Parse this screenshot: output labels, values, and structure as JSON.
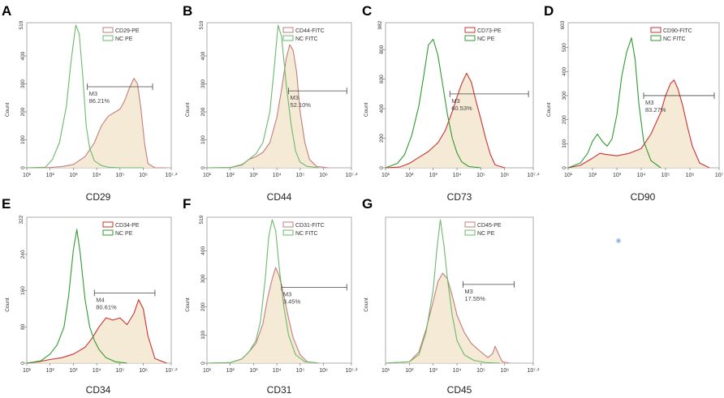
{
  "chart_data": [
    {
      "panel": "A",
      "type": "line",
      "xlabel": "CD29",
      "ylabel": "Count",
      "ylim": [
        0,
        519
      ],
      "ymax_label": "519",
      "yticks": [
        0,
        100,
        200,
        300,
        400
      ],
      "xlim": [
        1,
        7.2
      ],
      "xtick_labels": [
        "10¹",
        "10²",
        "10³",
        "10⁴",
        "10⁵",
        "10⁶",
        "10⁷·²"
      ],
      "legend": [
        "CD29-PE",
        "NC PE"
      ],
      "gate_name": "M3",
      "gate_pct": "86.21%",
      "gate_range": [
        3.6,
        6.4
      ],
      "gate_y": 290,
      "series": [
        {
          "name": "CD29-PE",
          "color": "#c47c7c",
          "fill": true,
          "x": [
            1,
            2,
            2.5,
            3,
            3.5,
            3.9,
            4.2,
            4.5,
            4.8,
            5,
            5.2,
            5.4,
            5.6,
            5.75,
            5.9,
            6.05,
            6.2,
            6.5,
            7
          ],
          "y": [
            0,
            1,
            4,
            12,
            40,
            90,
            150,
            185,
            200,
            210,
            240,
            285,
            320,
            300,
            210,
            90,
            15,
            0,
            0
          ]
        },
        {
          "name": "NC PE",
          "color": "#6cb86c",
          "fill": false,
          "x": [
            1,
            1.8,
            2.1,
            2.4,
            2.7,
            2.9,
            3.1,
            3.25,
            3.4,
            3.55,
            3.7,
            3.9,
            4.2,
            4.5,
            5,
            6
          ],
          "y": [
            0,
            2,
            30,
            90,
            220,
            380,
            510,
            480,
            330,
            150,
            70,
            25,
            8,
            2,
            0,
            0
          ]
        }
      ]
    },
    {
      "panel": "B",
      "type": "line",
      "xlabel": "CD44",
      "ylabel": "Count",
      "ylim": [
        0,
        519
      ],
      "ymax_label": "519",
      "yticks": [
        0,
        100,
        200,
        300,
        400
      ],
      "xlim": [
        1,
        7.2
      ],
      "xtick_labels": [
        "10¹",
        "10²",
        "10³",
        "10⁴",
        "10⁵",
        "10⁶",
        "10⁷·²"
      ],
      "legend": [
        "CD44-FITC",
        "NC FITC"
      ],
      "gate_name": "M3",
      "gate_pct": "52.10%",
      "gate_range": [
        4.5,
        7.0
      ],
      "gate_y": 275,
      "series": [
        {
          "name": "CD44-FITC",
          "color": "#c47c7c",
          "fill": true,
          "x": [
            1,
            2,
            2.5,
            2.8,
            3.1,
            3.4,
            3.7,
            4.0,
            4.2,
            4.4,
            4.55,
            4.7,
            4.85,
            5.0,
            5.2,
            5.4,
            5.7,
            6.2
          ],
          "y": [
            0,
            1,
            10,
            30,
            40,
            55,
            90,
            180,
            280,
            390,
            440,
            420,
            340,
            200,
            90,
            30,
            5,
            0
          ]
        },
        {
          "name": "NC FITC",
          "color": "#6cb86c",
          "fill": false,
          "x": [
            1,
            2,
            2.5,
            2.8,
            3.1,
            3.4,
            3.7,
            3.9,
            4.05,
            4.2,
            4.4,
            4.6,
            4.8,
            5.0,
            5.3,
            5.8
          ],
          "y": [
            0,
            1,
            12,
            30,
            50,
            90,
            200,
            370,
            510,
            470,
            300,
            160,
            60,
            20,
            5,
            0
          ]
        }
      ]
    },
    {
      "panel": "C",
      "type": "line",
      "xlabel": "CD73",
      "ylabel": "Count",
      "ylim": [
        0,
        982
      ],
      "ymax_label": "982",
      "yticks": [
        0,
        200,
        400,
        600,
        800
      ],
      "xlim": [
        1,
        7.2
      ],
      "xtick_labels": [
        "10¹",
        "10²",
        "10³",
        "10⁴",
        "10⁵",
        "10⁶",
        "10⁷·²"
      ],
      "legend": [
        "CD73-PE",
        "NC PE"
      ],
      "gate_name": "M3",
      "gate_pct": "60.53%",
      "gate_range": [
        3.7,
        7.0
      ],
      "gate_y": 500,
      "series": [
        {
          "name": "CD73-PE",
          "color": "#cc3030",
          "fill": true,
          "x": [
            1,
            1.6,
            2,
            2.4,
            2.8,
            3.2,
            3.5,
            3.8,
            4.0,
            4.2,
            4.4,
            4.6,
            4.8,
            5.0,
            5.2,
            5.4,
            5.6,
            6.0
          ],
          "y": [
            0,
            5,
            30,
            70,
            110,
            170,
            250,
            380,
            480,
            570,
            640,
            580,
            450,
            330,
            200,
            90,
            20,
            0
          ]
        },
        {
          "name": "NC PE",
          "color": "#2f9a2f",
          "fill": false,
          "x": [
            1,
            1.5,
            1.8,
            2.1,
            2.4,
            2.6,
            2.8,
            3.0,
            3.2,
            3.4,
            3.6,
            3.8,
            4.0,
            4.2,
            4.5,
            5.0
          ],
          "y": [
            0,
            30,
            90,
            220,
            420,
            620,
            830,
            870,
            760,
            560,
            360,
            200,
            100,
            40,
            8,
            0
          ]
        }
      ]
    },
    {
      "panel": "D",
      "type": "line",
      "xlabel": "CD90",
      "ylabel": "Count",
      "ylim": [
        0,
        603
      ],
      "ymax_label": "603",
      "yticks": [
        0,
        100,
        200,
        300,
        400,
        500
      ],
      "xlim": [
        1,
        7.2
      ],
      "xtick_labels": [
        "10¹",
        "10²",
        "10³",
        "10⁴",
        "10⁵",
        "10⁶",
        "10⁷"
      ],
      "legend": [
        "CD90-FITC",
        "NC FITC"
      ],
      "gate_name": "M3",
      "gate_pct": "83.27%",
      "gate_range": [
        4.1,
        7.0
      ],
      "gate_y": 300,
      "series": [
        {
          "name": "CD90-FITC",
          "color": "#cc3030",
          "fill": true,
          "x": [
            1,
            1.5,
            2,
            2.3,
            2.6,
            3.0,
            3.5,
            4.0,
            4.4,
            4.8,
            5.0,
            5.2,
            5.35,
            5.5,
            5.7,
            5.9,
            6.1,
            6.4,
            6.8
          ],
          "y": [
            0,
            10,
            40,
            60,
            55,
            50,
            60,
            80,
            140,
            230,
            300,
            350,
            365,
            330,
            260,
            170,
            90,
            20,
            0
          ]
        },
        {
          "name": "NC FITC",
          "color": "#2f9a2f",
          "fill": false,
          "x": [
            1,
            1.5,
            1.8,
            2.0,
            2.2,
            2.4,
            2.6,
            2.8,
            3.0,
            3.2,
            3.4,
            3.6,
            3.75,
            3.9,
            4.1,
            4.4,
            4.8
          ],
          "y": [
            0,
            20,
            60,
            110,
            140,
            110,
            90,
            120,
            220,
            380,
            480,
            540,
            450,
            270,
            110,
            30,
            0
          ]
        }
      ]
    },
    {
      "panel": "E",
      "type": "line",
      "xlabel": "CD34",
      "ylabel": "Count",
      "ylim": [
        0,
        322
      ],
      "ymax_label": "322",
      "yticks": [
        0,
        80,
        160,
        240
      ],
      "xlim": [
        1,
        7.2
      ],
      "xtick_labels": [
        "10¹",
        "10²",
        "10³",
        "10⁴",
        "10⁵",
        "10⁶",
        "10⁷·²"
      ],
      "legend": [
        "CD34-PE",
        "NC PE"
      ],
      "gate_name": "M4",
      "gate_pct": "80.61%",
      "gate_range": [
        3.9,
        6.5
      ],
      "gate_y": 155,
      "series": [
        {
          "name": "CD34-PE",
          "color": "#cc3030",
          "fill": true,
          "x": [
            1,
            1.5,
            2,
            2.5,
            3,
            3.5,
            3.8,
            4.1,
            4.4,
            4.7,
            5.0,
            5.3,
            5.6,
            5.8,
            6.0,
            6.2,
            6.5,
            7
          ],
          "y": [
            0,
            3,
            8,
            12,
            20,
            35,
            55,
            80,
            100,
            95,
            100,
            85,
            110,
            140,
            120,
            60,
            10,
            0
          ]
        },
        {
          "name": "NC PE",
          "color": "#2f9a2f",
          "fill": false,
          "x": [
            1,
            1.6,
            2.0,
            2.3,
            2.6,
            2.8,
            3.0,
            3.15,
            3.3,
            3.5,
            3.7,
            3.9,
            4.1,
            4.4,
            4.8,
            5.3
          ],
          "y": [
            0,
            5,
            20,
            40,
            80,
            150,
            250,
            295,
            240,
            140,
            80,
            50,
            30,
            12,
            3,
            0
          ]
        }
      ]
    },
    {
      "panel": "F",
      "type": "line",
      "xlabel": "CD31",
      "ylabel": "Count",
      "ylim": [
        0,
        519
      ],
      "ymax_label": "519",
      "yticks": [
        0,
        100,
        200,
        300,
        400
      ],
      "xlim": [
        1,
        7.2
      ],
      "xtick_labels": [
        "10¹",
        "10²",
        "10³",
        "10⁴",
        "10⁵",
        "10⁶",
        "10⁷·²"
      ],
      "legend": [
        "CD31-FITC",
        "NC FITC"
      ],
      "gate_name": "M3",
      "gate_pct": "3.45%",
      "gate_range": [
        4.2,
        7.0
      ],
      "gate_y": 270,
      "series": [
        {
          "name": "CD31-FITC",
          "color": "#c47c7c",
          "fill": true,
          "x": [
            1,
            2,
            2.5,
            2.8,
            3.1,
            3.4,
            3.6,
            3.8,
            3.95,
            4.1,
            4.3,
            4.5,
            4.7,
            5.0,
            5.3,
            5.8
          ],
          "y": [
            0,
            2,
            15,
            40,
            70,
            140,
            230,
            300,
            340,
            310,
            240,
            160,
            90,
            30,
            5,
            0
          ]
        },
        {
          "name": "NC FITC",
          "color": "#6cb86c",
          "fill": false,
          "x": [
            1,
            2,
            2.5,
            2.8,
            3.1,
            3.3,
            3.5,
            3.65,
            3.8,
            3.95,
            4.1,
            4.3,
            4.5,
            4.8,
            5.2,
            5.8
          ],
          "y": [
            0,
            2,
            15,
            40,
            80,
            150,
            300,
            450,
            510,
            470,
            340,
            200,
            100,
            30,
            5,
            0
          ]
        }
      ]
    },
    {
      "panel": "G",
      "type": "line",
      "xlabel": "CD45",
      "ylabel": "Count",
      "ylim": [
        0,
        519
      ],
      "ymax_label": "",
      "yticks": [],
      "xlim": [
        1,
        7.2
      ],
      "xtick_labels": [
        "10¹",
        "10²",
        "10³",
        "10⁴",
        "10⁵",
        "10⁶",
        "10⁷·²"
      ],
      "legend": [
        "CD45-PE",
        "NC PE"
      ],
      "gate_name": "M3",
      "gate_pct": "17.55%",
      "gate_range": [
        4.25,
        6.4
      ],
      "gate_y": 280,
      "series": [
        {
          "name": "CD45-PE",
          "color": "#c47c7c",
          "fill": true,
          "x": [
            1,
            2,
            2.4,
            2.7,
            3.0,
            3.2,
            3.4,
            3.6,
            3.8,
            4.0,
            4.3,
            4.6,
            5.0,
            5.3,
            5.5,
            5.6,
            5.7,
            5.9,
            6.2
          ],
          "y": [
            0,
            5,
            40,
            120,
            220,
            290,
            320,
            300,
            240,
            170,
            110,
            70,
            40,
            20,
            35,
            60,
            40,
            5,
            0
          ]
        },
        {
          "name": "NC PE",
          "color": "#6cb86c",
          "fill": false,
          "x": [
            1,
            2,
            2.4,
            2.7,
            3.0,
            3.15,
            3.3,
            3.45,
            3.6,
            3.8,
            4.0,
            4.3,
            4.7,
            5.2,
            5.8
          ],
          "y": [
            0,
            5,
            30,
            110,
            260,
            400,
            510,
            420,
            300,
            170,
            80,
            30,
            10,
            2,
            0
          ]
        }
      ]
    }
  ]
}
